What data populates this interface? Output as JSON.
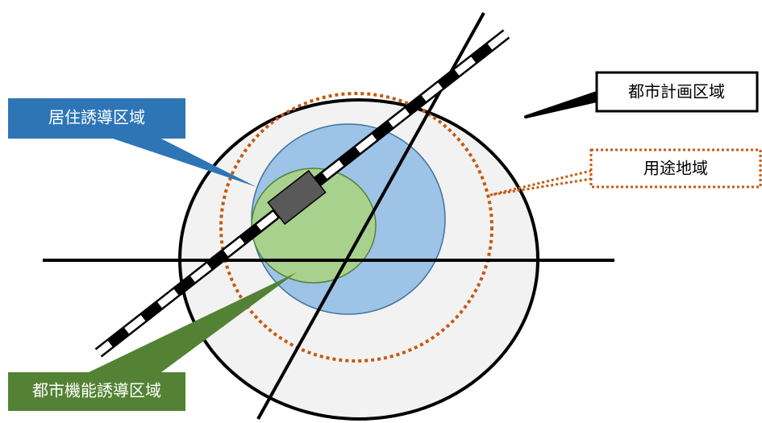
{
  "labels": {
    "city_planning_area": "都市計画区域",
    "land_use_zone": "用途地域",
    "residential_guidance_area": "居住誘導区域",
    "urban_function_guidance_area": "都市機能誘導区域"
  },
  "colors": {
    "city_planning_fill": "#f2f2f2",
    "outline": "#000000",
    "land_use_dots": "#c55a11",
    "residential_fill": "#9dc3e6",
    "residential_stroke": "#41719c",
    "urban_fill": "#a9d18e",
    "urban_stroke": "#548235",
    "residential_label_bg": "#2e75b6",
    "urban_label_bg": "#548235",
    "station_fill": "#595959"
  }
}
